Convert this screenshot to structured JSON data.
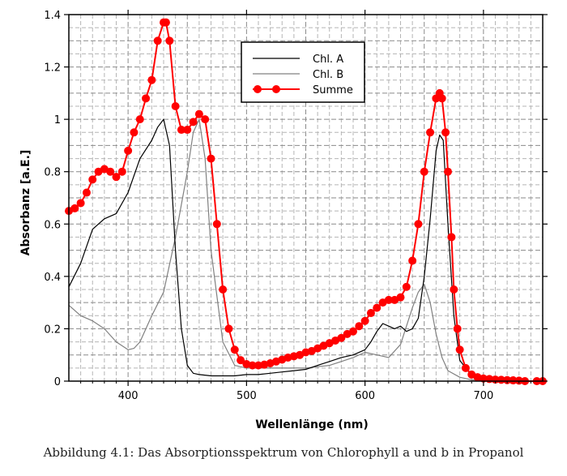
{
  "caption": "Abbildung 4.1: Das Absorptionsspektrum von Chlorophyll a und b in Propanol",
  "chart_data": {
    "type": "line",
    "xlabel": "Wellenlänge (nm)",
    "ylabel": "Absorbanz [a.E.]",
    "xlim": [
      350,
      750
    ],
    "ylim": [
      0,
      1.4
    ],
    "x_ticks": [
      400,
      500,
      600,
      700
    ],
    "y_ticks": [
      0,
      0.2,
      0.4,
      0.6,
      0.8,
      1,
      1.2,
      1.4
    ],
    "y_tick_labels": [
      "0",
      "0.2",
      "0.4",
      "0.6",
      "0.8",
      "1",
      "1.2",
      "1.4"
    ],
    "grid": true,
    "legend_position": "top-center",
    "series": [
      {
        "name": "Chl. A",
        "color": "#000000",
        "marker": "none",
        "x": [
          350,
          360,
          370,
          380,
          390,
          400,
          410,
          420,
          425,
          430,
          435,
          440,
          445,
          450,
          455,
          460,
          470,
          480,
          490,
          500,
          510,
          520,
          530,
          540,
          550,
          560,
          570,
          580,
          590,
          600,
          605,
          610,
          615,
          620,
          625,
          630,
          635,
          640,
          645,
          650,
          655,
          660,
          663,
          666,
          670,
          675,
          680,
          690,
          700,
          710,
          720,
          730
        ],
        "y": [
          0.36,
          0.45,
          0.58,
          0.62,
          0.64,
          0.72,
          0.85,
          0.92,
          0.97,
          1.0,
          0.9,
          0.5,
          0.2,
          0.06,
          0.03,
          0.025,
          0.02,
          0.02,
          0.02,
          0.025,
          0.025,
          0.03,
          0.035,
          0.04,
          0.045,
          0.06,
          0.075,
          0.09,
          0.1,
          0.12,
          0.15,
          0.19,
          0.22,
          0.21,
          0.2,
          0.21,
          0.19,
          0.2,
          0.24,
          0.4,
          0.62,
          0.88,
          0.94,
          0.92,
          0.6,
          0.25,
          0.08,
          0.02,
          0.005,
          0.002,
          0.001,
          0.0
        ]
      },
      {
        "name": "Chl. B",
        "color": "#808080",
        "marker": "none",
        "x": [
          350,
          360,
          370,
          380,
          390,
          400,
          405,
          410,
          420,
          430,
          440,
          450,
          455,
          460,
          465,
          470,
          480,
          490,
          500,
          510,
          520,
          530,
          540,
          550,
          560,
          570,
          580,
          590,
          600,
          610,
          620,
          630,
          640,
          645,
          650,
          655,
          660,
          665,
          670,
          680,
          690,
          700,
          710,
          720,
          730
        ],
        "y": [
          0.29,
          0.25,
          0.23,
          0.2,
          0.15,
          0.12,
          0.125,
          0.15,
          0.25,
          0.34,
          0.55,
          0.8,
          0.95,
          1.0,
          0.85,
          0.5,
          0.15,
          0.06,
          0.05,
          0.05,
          0.05,
          0.05,
          0.05,
          0.05,
          0.055,
          0.06,
          0.075,
          0.09,
          0.11,
          0.1,
          0.09,
          0.14,
          0.28,
          0.34,
          0.37,
          0.3,
          0.18,
          0.09,
          0.04,
          0.015,
          0.005,
          0.002,
          0.001,
          0.001,
          0.0
        ]
      },
      {
        "name": "Summe",
        "color": "#ff0000",
        "marker": "circle",
        "x": [
          350,
          355,
          360,
          365,
          370,
          375,
          380,
          385,
          390,
          395,
          400,
          405,
          410,
          415,
          420,
          425,
          430,
          432,
          435,
          440,
          445,
          450,
          455,
          460,
          465,
          470,
          475,
          480,
          485,
          490,
          495,
          500,
          505,
          510,
          515,
          520,
          525,
          530,
          535,
          540,
          545,
          550,
          555,
          560,
          565,
          570,
          575,
          580,
          585,
          590,
          595,
          600,
          605,
          610,
          615,
          620,
          625,
          630,
          635,
          640,
          645,
          650,
          655,
          660,
          663,
          665,
          668,
          670,
          673,
          675,
          678,
          680,
          685,
          690,
          695,
          700,
          705,
          710,
          715,
          720,
          725,
          730,
          735,
          745,
          750
        ],
        "y": [
          0.65,
          0.66,
          0.68,
          0.72,
          0.77,
          0.8,
          0.81,
          0.8,
          0.78,
          0.8,
          0.88,
          0.95,
          1.0,
          1.08,
          1.15,
          1.3,
          1.37,
          1.37,
          1.3,
          1.05,
          0.96,
          0.96,
          0.99,
          1.02,
          1.0,
          0.85,
          0.6,
          0.35,
          0.2,
          0.12,
          0.08,
          0.065,
          0.06,
          0.06,
          0.063,
          0.068,
          0.075,
          0.082,
          0.09,
          0.095,
          0.1,
          0.11,
          0.115,
          0.125,
          0.135,
          0.145,
          0.155,
          0.165,
          0.18,
          0.19,
          0.21,
          0.23,
          0.26,
          0.28,
          0.3,
          0.31,
          0.31,
          0.32,
          0.36,
          0.46,
          0.6,
          0.8,
          0.95,
          1.08,
          1.1,
          1.08,
          0.95,
          0.8,
          0.55,
          0.35,
          0.2,
          0.12,
          0.05,
          0.025,
          0.015,
          0.01,
          0.008,
          0.006,
          0.005,
          0.004,
          0.003,
          0.002,
          0.0,
          0.0,
          0.0
        ]
      }
    ]
  }
}
